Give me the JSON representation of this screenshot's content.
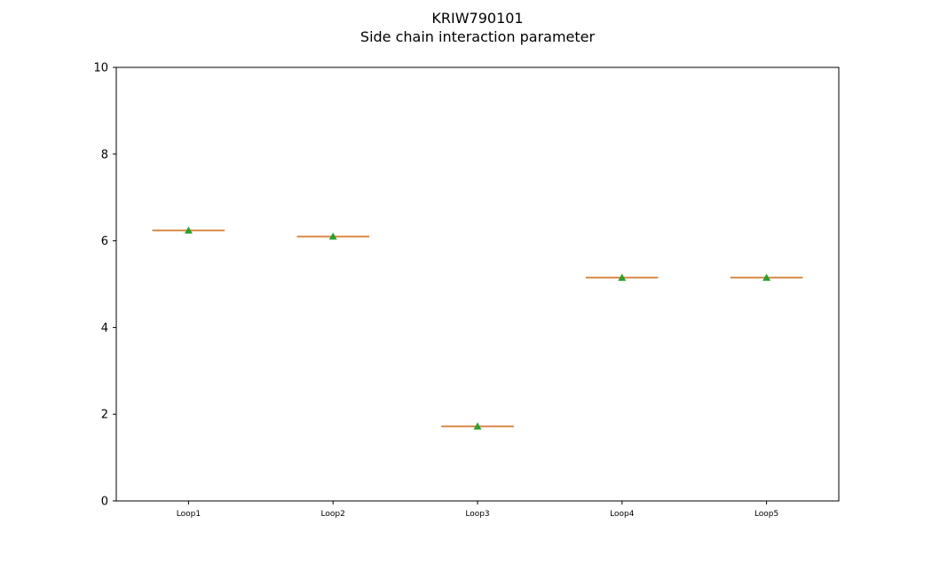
{
  "chart_data": {
    "type": "box",
    "title": "KRIW790101",
    "subtitle": "Side chain interaction parameter",
    "xlabel": "",
    "ylabel": "",
    "ylim": [
      0,
      10
    ],
    "yticks": [
      0,
      2,
      4,
      6,
      8,
      10
    ],
    "grid": false,
    "categories": [
      "Loop1",
      "Loop2",
      "Loop3",
      "Loop4",
      "Loop5"
    ],
    "medians": [
      6.24,
      6.1,
      1.72,
      5.15,
      5.15
    ],
    "means": [
      6.24,
      6.1,
      1.72,
      5.15,
      5.15
    ],
    "colors": {
      "median": "#d98b47",
      "box": "#000000",
      "mean_marker": "#2ca02c"
    }
  }
}
